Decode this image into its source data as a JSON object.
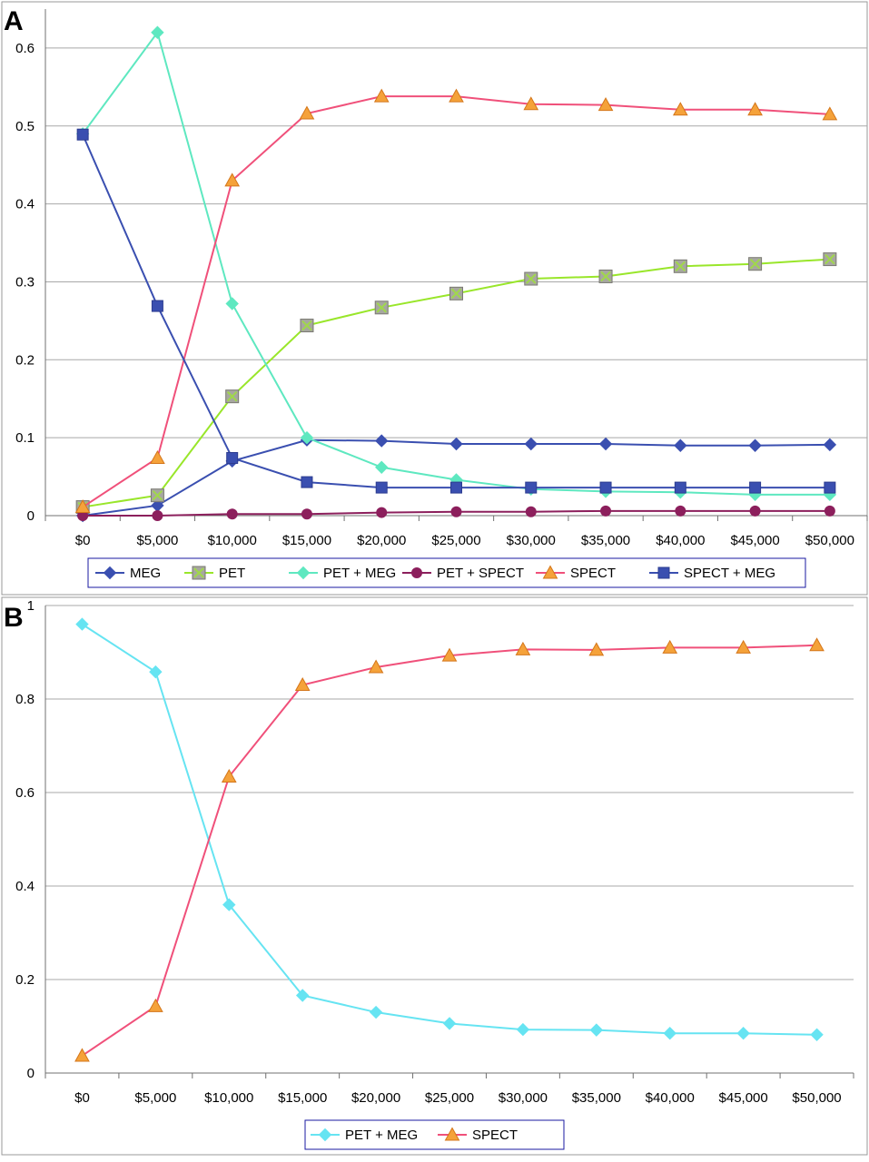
{
  "chart_data": [
    {
      "panel": "A",
      "type": "line",
      "x": [
        "$0",
        "$5,000",
        "$10,000",
        "$15,000",
        "$20,000",
        "$25,000",
        "$30,000",
        "$35,000",
        "$40,000",
        "$45,000",
        "$50,000"
      ],
      "ylim": [
        0,
        0.65
      ],
      "yticks": [
        0,
        0.1,
        0.2,
        0.3,
        0.4,
        0.5,
        0.6
      ],
      "ytick_labels": [
        "0",
        "0.1",
        "0.2",
        "0.3",
        "0.4",
        "0.5",
        "0.6"
      ],
      "grid": true,
      "legend_position": "bottom",
      "series": [
        {
          "name": "MEG",
          "color": "#3a4fb0",
          "marker": "diamond",
          "values": [
            0.0,
            0.013,
            0.07,
            0.097,
            0.096,
            0.092,
            0.092,
            0.092,
            0.09,
            0.09,
            0.091
          ]
        },
        {
          "name": "PET",
          "color": "#99e62a",
          "marker": "boxx",
          "values": [
            0.011,
            0.026,
            0.153,
            0.244,
            0.267,
            0.285,
            0.304,
            0.307,
            0.32,
            0.323,
            0.329
          ]
        },
        {
          "name": "PET + MEG",
          "color": "#5ee8c0",
          "marker": "diamond",
          "values": [
            0.49,
            0.62,
            0.272,
            0.1,
            0.062,
            0.046,
            0.034,
            0.031,
            0.03,
            0.027,
            0.027
          ]
        },
        {
          "name": "PET + SPECT",
          "color": "#8c1f5c",
          "marker": "circle",
          "values": [
            0.0,
            0.0,
            0.002,
            0.002,
            0.004,
            0.005,
            0.005,
            0.006,
            0.006,
            0.006,
            0.006
          ]
        },
        {
          "name": "SPECT",
          "color": "#f0507a",
          "marker": "triangle",
          "values": [
            0.011,
            0.074,
            0.43,
            0.516,
            0.538,
            0.538,
            0.528,
            0.527,
            0.521,
            0.521,
            0.515
          ]
        },
        {
          "name": "SPECT + MEG",
          "color": "#3a4fb0",
          "marker": "square",
          "values": [
            0.489,
            0.269,
            0.074,
            0.043,
            0.036,
            0.036,
            0.036,
            0.036,
            0.036,
            0.036,
            0.036
          ]
        }
      ]
    },
    {
      "panel": "B",
      "type": "line",
      "x": [
        "$0",
        "$5,000",
        "$10,000",
        "$15,000",
        "$20,000",
        "$25,000",
        "$30,000",
        "$35,000",
        "$40,000",
        "$45,000",
        "$50,000"
      ],
      "ylim": [
        0,
        1
      ],
      "yticks": [
        0,
        0.2,
        0.4,
        0.6,
        0.8,
        1
      ],
      "ytick_labels": [
        "0",
        "0.2",
        "0.4",
        "0.6",
        "0.8",
        "1"
      ],
      "grid": true,
      "legend_position": "bottom",
      "series": [
        {
          "name": "PET + MEG",
          "color": "#66e4f2",
          "marker": "diamond",
          "values": [
            0.96,
            0.858,
            0.36,
            0.166,
            0.13,
            0.106,
            0.093,
            0.092,
            0.085,
            0.085,
            0.082
          ]
        },
        {
          "name": "SPECT",
          "color": "#f0507a",
          "marker": "triangle",
          "values": [
            0.037,
            0.143,
            0.634,
            0.83,
            0.868,
            0.893,
            0.906,
            0.905,
            0.91,
            0.91,
            0.915
          ]
        }
      ]
    }
  ],
  "marker_colors": {
    "triangle_fill": "#f5a23a",
    "triangle_stroke": "#d4761a",
    "box_fill": "#a7a7a0",
    "box_stroke": "#7a7a72",
    "boxx_cross": "#a0d84a"
  }
}
